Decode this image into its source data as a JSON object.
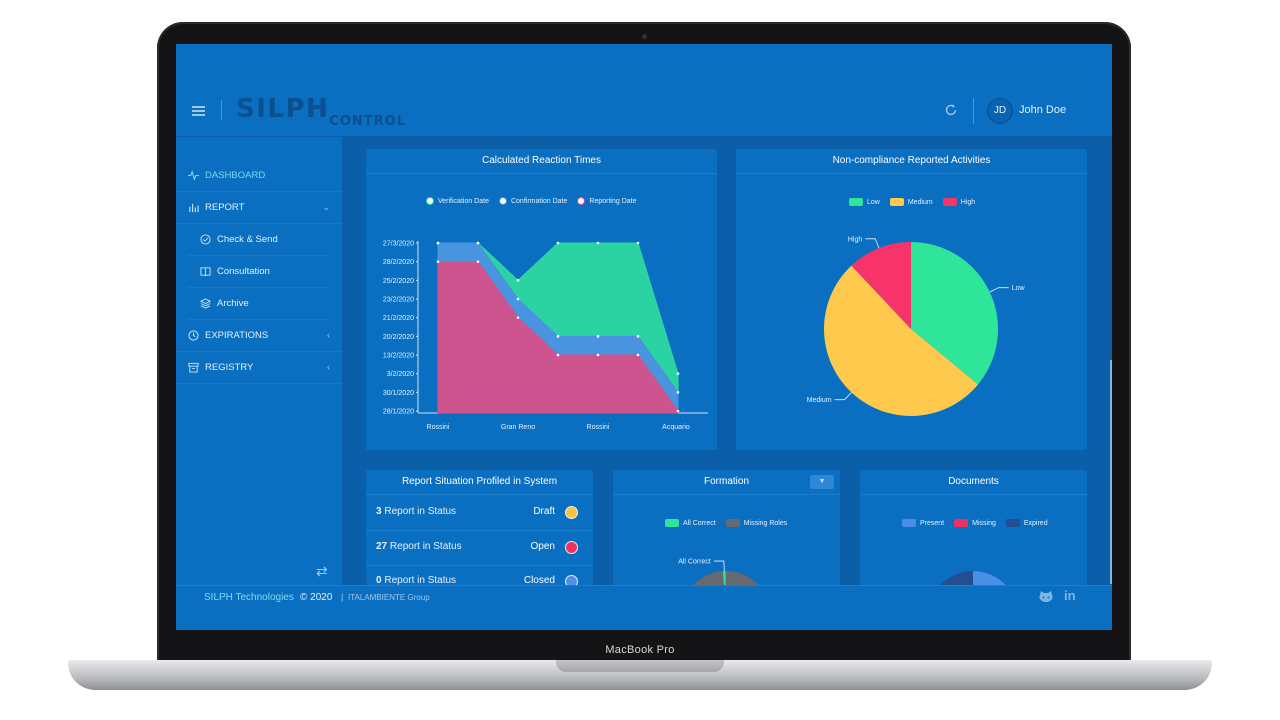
{
  "device": {
    "label": "MacBook Pro"
  },
  "header": {
    "logo_main": "SILPH",
    "logo_sub": "CONTROL",
    "user_initials": "JD",
    "user_name": "John Doe"
  },
  "sidebar": {
    "items": [
      {
        "label": "DASHBOARD",
        "icon": "pulse-icon"
      },
      {
        "label": "REPORT",
        "icon": "bar-chart-icon"
      },
      {
        "label": "Check & Send",
        "icon": "check-circle-icon"
      },
      {
        "label": "Consultation",
        "icon": "book-icon"
      },
      {
        "label": "Archive",
        "icon": "layers-icon"
      },
      {
        "label": "EXPIRATIONS",
        "icon": "clock-icon"
      },
      {
        "label": "REGISTRY",
        "icon": "archive-box-icon"
      }
    ]
  },
  "cards": {
    "reaction": {
      "title": "Calculated Reaction Times"
    },
    "noncompliance": {
      "title": "Non-compliance Reported Activities"
    },
    "report_situation": {
      "title": "Report Situation Profiled in System",
      "rows": [
        {
          "count": "3",
          "text": "Report in Status",
          "status": "Draft",
          "color": "#f6c445"
        },
        {
          "count": "27",
          "text": "Report in Status",
          "status": "Open",
          "color": "#f0305f"
        },
        {
          "count": "0",
          "text": "Report in Status",
          "status": "Closed",
          "color": "#4f8fe6"
        }
      ]
    },
    "formation": {
      "title": "Formation"
    },
    "documents": {
      "title": "Documents"
    }
  },
  "chart_data": [
    {
      "type": "area",
      "title": "Calculated Reaction Times",
      "x_tick_labels": [
        "Rossini",
        "Gran Reno",
        "Rossini",
        "Acquario"
      ],
      "y_tick_labels": [
        "27/3/2020",
        "28/2/2020",
        "25/2/2020",
        "23/2/2020",
        "21/2/2020",
        "20/2/2020",
        "13/2/2020",
        "3/2/2020",
        "30/1/2020",
        "28/1/2020"
      ],
      "series": [
        {
          "name": "Verification Date",
          "color": "#2ed8a0",
          "values": [
            9,
            9,
            7,
            9,
            9,
            9,
            2
          ]
        },
        {
          "name": "Confirmation Date",
          "color": "#4a90e2",
          "values": [
            9,
            9,
            6,
            4,
            4,
            4,
            1
          ]
        },
        {
          "name": "Reporting Date",
          "color": "#d6508a",
          "values": [
            8,
            8,
            5,
            3,
            3,
            3,
            0
          ]
        }
      ]
    },
    {
      "type": "pie",
      "title": "Non-compliance Reported Activities",
      "series": [
        {
          "name": "Low",
          "value": 36,
          "color": "#2ee59a"
        },
        {
          "name": "Medium",
          "value": 52,
          "color": "#ffc94d"
        },
        {
          "name": "High",
          "value": 12,
          "color": "#f7346a"
        }
      ],
      "legend": "top"
    },
    {
      "type": "pie",
      "title": "Formation",
      "series": [
        {
          "name": "All Correct",
          "value": 1,
          "color": "#2ee59a"
        },
        {
          "name": "Missing Roles",
          "value": 99,
          "color": "#666a70"
        }
      ],
      "legend": "top"
    },
    {
      "type": "pie",
      "title": "Documents",
      "series": [
        {
          "name": "Present",
          "value": 35,
          "color": "#4a8fe6"
        },
        {
          "name": "Missing",
          "value": 0,
          "color": "#f0305f"
        },
        {
          "name": "Expired",
          "value": 65,
          "color": "#234e8f"
        }
      ],
      "legend": "top"
    }
  ],
  "footer": {
    "company": "SILPH Technologies",
    "year": "© 2020",
    "separator": "|",
    "group": "ITALAMBIENTE Group"
  }
}
